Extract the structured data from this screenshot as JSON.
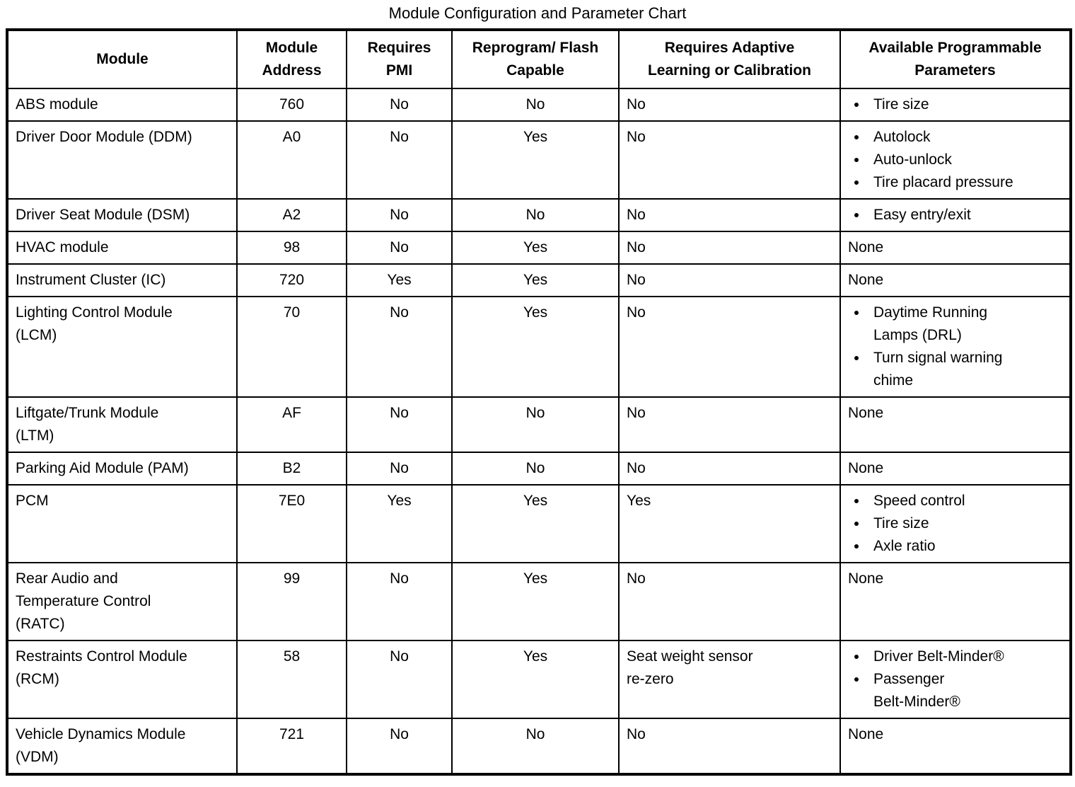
{
  "title": "Module Configuration and Parameter Chart",
  "table": {
    "columns": [
      "Module",
      "Module\nAddress",
      "Requires\nPMI",
      "Reprogram/ Flash\nCapable",
      "Requires Adaptive\nLearning or Calibration",
      "Available Programmable\nParameters"
    ],
    "rows": [
      {
        "module": "ABS module",
        "address": "760",
        "requires_pmi": "No",
        "flash_capable": "No",
        "adaptive": "No",
        "parameters": [
          "Tire size"
        ]
      },
      {
        "module": "Driver Door Module (DDM)",
        "address": "A0",
        "requires_pmi": "No",
        "flash_capable": "Yes",
        "adaptive": "No",
        "parameters": [
          "Autolock",
          "Auto-unlock",
          "Tire placard pressure"
        ]
      },
      {
        "module": "Driver Seat Module (DSM)",
        "address": "A2",
        "requires_pmi": "No",
        "flash_capable": "No",
        "adaptive": "No",
        "parameters": [
          "Easy entry/exit"
        ]
      },
      {
        "module": "HVAC module",
        "address": "98",
        "requires_pmi": "No",
        "flash_capable": "Yes",
        "adaptive": "No",
        "parameters": "None"
      },
      {
        "module": "Instrument Cluster (IC)",
        "address": "720",
        "requires_pmi": "Yes",
        "flash_capable": "Yes",
        "adaptive": "No",
        "parameters": "None"
      },
      {
        "module": "Lighting Control Module\n(LCM)",
        "address": "70",
        "requires_pmi": "No",
        "flash_capable": "Yes",
        "adaptive": "No",
        "parameters": [
          "Daytime Running\nLamps (DRL)",
          "Turn signal warning\nchime"
        ]
      },
      {
        "module": "Liftgate/Trunk Module\n(LTM)",
        "address": "AF",
        "requires_pmi": "No",
        "flash_capable": "No",
        "adaptive": "No",
        "parameters": "None"
      },
      {
        "module": "Parking Aid Module (PAM)",
        "address": "B2",
        "requires_pmi": "No",
        "flash_capable": "No",
        "adaptive": "No",
        "parameters": "None"
      },
      {
        "module": "PCM",
        "address": "7E0",
        "requires_pmi": "Yes",
        "flash_capable": "Yes",
        "adaptive": "Yes",
        "parameters": [
          "Speed control",
          "Tire size",
          "Axle ratio"
        ]
      },
      {
        "module": "Rear Audio and\nTemperature Control\n(RATC)",
        "address": "99",
        "requires_pmi": "No",
        "flash_capable": "Yes",
        "adaptive": "No",
        "parameters": "None"
      },
      {
        "module": "Restraints Control Module\n(RCM)",
        "address": "58",
        "requires_pmi": "No",
        "flash_capable": "Yes",
        "adaptive": "Seat weight sensor\nre-zero",
        "parameters": [
          "Driver Belt-Minder®",
          "Passenger\nBelt-Minder®"
        ]
      },
      {
        "module": "Vehicle Dynamics Module\n(VDM)",
        "address": "721",
        "requires_pmi": "No",
        "flash_capable": "No",
        "adaptive": "No",
        "parameters": "None"
      }
    ]
  }
}
